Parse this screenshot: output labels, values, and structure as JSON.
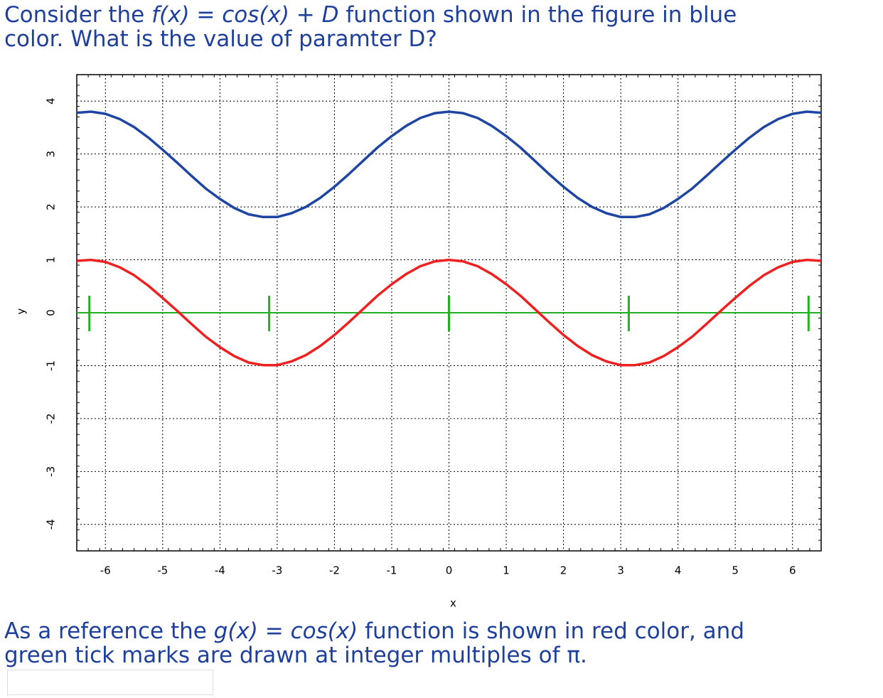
{
  "question": {
    "line1_start": "Consider the ",
    "line1_math": "f(x) = cos(x) + D",
    "line1_end": " function shown in the figure in blue",
    "line2": "color. What is the value of paramter D?"
  },
  "note": {
    "line1_start": "As a reference the ",
    "line1_math": "g(x) = cos(x)",
    "line1_end": " function is shown in red color, and",
    "line2": "green tick marks are drawn at integer multiples of π."
  },
  "chart_data": {
    "type": "line",
    "xlabel": "x",
    "ylabel": "y",
    "x": [
      -6.5,
      -6.25,
      -6,
      -5.75,
      -5.5,
      -5.25,
      -5,
      -4.75,
      -4.5,
      -4.25,
      -4,
      -3.75,
      -3.5,
      -3.25,
      -3,
      -2.75,
      -2.5,
      -2.25,
      -2,
      -1.75,
      -1.5,
      -1.25,
      -1,
      -0.75,
      -0.5,
      -0.25,
      0,
      0.25,
      0.5,
      0.75,
      1,
      1.25,
      1.5,
      1.75,
      2,
      2.25,
      2.5,
      2.75,
      3,
      3.25,
      3.5,
      3.75,
      4,
      4.25,
      4.5,
      4.75,
      5,
      5.25,
      5.5,
      5.75,
      6,
      6.25,
      6.5
    ],
    "series": [
      {
        "color": "#1f45a3",
        "values": [
          3.78,
          3.8,
          3.76,
          3.66,
          3.51,
          3.31,
          3.08,
          2.84,
          2.59,
          2.35,
          2.15,
          1.98,
          1.86,
          1.81,
          1.81,
          1.88,
          2.0,
          2.17,
          2.38,
          2.62,
          2.87,
          3.12,
          3.34,
          3.53,
          3.68,
          3.77,
          3.8,
          3.77,
          3.68,
          3.53,
          3.34,
          3.12,
          2.87,
          2.62,
          2.38,
          2.17,
          2.0,
          1.88,
          1.81,
          1.81,
          1.86,
          1.98,
          2.15,
          2.35,
          2.59,
          2.84,
          3.08,
          3.31,
          3.51,
          3.66,
          3.76,
          3.8,
          3.78
        ]
      },
      {
        "color": "#ee2020",
        "values": [
          0.98,
          1.0,
          0.96,
          0.86,
          0.71,
          0.51,
          0.28,
          0.04,
          -0.21,
          -0.45,
          -0.65,
          -0.82,
          -0.94,
          -0.99,
          -0.99,
          -0.92,
          -0.8,
          -0.63,
          -0.42,
          -0.18,
          0.07,
          0.32,
          0.54,
          0.73,
          0.88,
          0.97,
          1.0,
          0.97,
          0.88,
          0.73,
          0.54,
          0.32,
          0.07,
          -0.18,
          -0.42,
          -0.63,
          -0.8,
          -0.92,
          -0.99,
          -0.99,
          -0.94,
          -0.82,
          -0.65,
          -0.45,
          -0.21,
          0.04,
          0.28,
          0.51,
          0.71,
          0.86,
          0.96,
          1.0,
          0.98
        ]
      }
    ],
    "zero_line": 0,
    "pi_ticks": [
      -6.28,
      -3.14,
      0,
      3.14,
      6.28
    ],
    "pi_tick_color": "#22b022",
    "xlim": [
      -6.5,
      6.5
    ],
    "ylim": [
      -4.5,
      4.5
    ],
    "xticks": [
      -6,
      -5,
      -4,
      -3,
      -2,
      -1,
      0,
      1,
      2,
      3,
      4,
      5,
      6
    ],
    "yticks": [
      -4,
      -3,
      -2,
      -1,
      0,
      1,
      2,
      3,
      4
    ],
    "grid": true
  }
}
